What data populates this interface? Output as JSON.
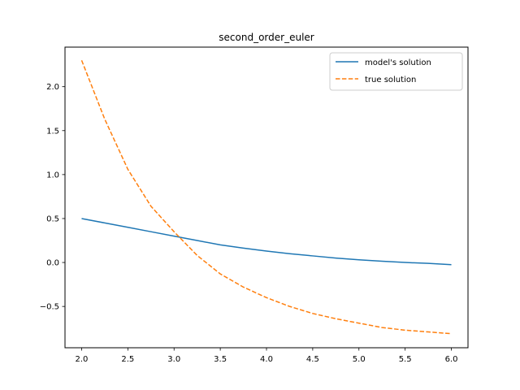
{
  "chart_data": {
    "type": "line",
    "title": "second_order_euler",
    "xlabel": "",
    "ylabel": "",
    "xlim": [
      1.82,
      6.18
    ],
    "ylim": [
      -0.97,
      2.45
    ],
    "xticks": [
      2.0,
      2.5,
      3.0,
      3.5,
      4.0,
      4.5,
      5.0,
      5.5,
      6.0
    ],
    "xtick_labels": [
      "2.0",
      "2.5",
      "3.0",
      "3.5",
      "4.0",
      "4.5",
      "5.0",
      "5.5",
      "6.0"
    ],
    "yticks": [
      -0.5,
      0.0,
      0.5,
      1.0,
      1.5,
      2.0
    ],
    "ytick_labels": [
      "−0.5",
      "0.0",
      "0.5",
      "1.0",
      "1.5",
      "2.0"
    ],
    "grid": false,
    "legend_position": "top-right",
    "series": [
      {
        "name": "model's solution",
        "color": "#1f77b4",
        "dash": "solid",
        "x": [
          2.0,
          2.25,
          2.5,
          2.75,
          3.0,
          3.25,
          3.5,
          3.75,
          4.0,
          4.25,
          4.5,
          4.75,
          5.0,
          5.25,
          5.5,
          5.75,
          6.0
        ],
        "y": [
          0.5,
          0.45,
          0.4,
          0.35,
          0.3,
          0.25,
          0.2,
          0.163,
          0.13,
          0.1,
          0.075,
          0.05,
          0.03,
          0.015,
          0.0,
          -0.01,
          -0.025
        ]
      },
      {
        "name": "true solution",
        "color": "#ff7f0e",
        "dash": "dashed",
        "x": [
          2.0,
          2.25,
          2.5,
          2.75,
          3.0,
          3.25,
          3.5,
          3.75,
          4.0,
          4.25,
          4.5,
          4.75,
          5.0,
          5.25,
          5.5,
          5.75,
          6.0
        ],
        "y": [
          2.3,
          1.63,
          1.06,
          0.64,
          0.35,
          0.08,
          -0.13,
          -0.28,
          -0.4,
          -0.5,
          -0.58,
          -0.64,
          -0.69,
          -0.74,
          -0.77,
          -0.79,
          -0.81
        ]
      }
    ]
  }
}
